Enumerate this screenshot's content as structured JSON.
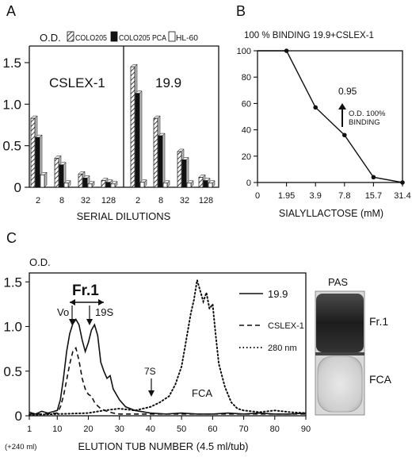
{
  "figure": {
    "panel_labels": [
      "A",
      "B",
      "C"
    ]
  },
  "chart_data": [
    {
      "id": "A",
      "type": "bar",
      "ylabel": "O.D.",
      "xlabel": "SERIAL DILUTIONS",
      "ylim": [
        0,
        1.7
      ],
      "yticks": [
        "0",
        "0.5",
        "1.0",
        "1.5"
      ],
      "ytick_values": [
        0,
        0.5,
        1.0,
        1.5
      ],
      "legend": [
        "COLO205",
        "COLO205 PCA",
        "HL-60"
      ],
      "legend_position": "top",
      "subpanels": [
        {
          "title": "CSLEX-1",
          "categories": [
            "2",
            "8",
            "32",
            "128"
          ],
          "series": [
            {
              "name": "COLO205",
              "values": [
                0.83,
                0.35,
                0.16,
                0.08
              ]
            },
            {
              "name": "COLO205 PCA",
              "values": [
                0.6,
                0.27,
                0.11,
                0.06
              ]
            },
            {
              "name": "HL-60",
              "values": [
                0.15,
                0.05,
                0.04,
                0.04
              ]
            }
          ]
        },
        {
          "title": "19.9",
          "categories": [
            "2",
            "8",
            "32",
            "128"
          ],
          "series": [
            {
              "name": "COLO205",
              "values": [
                1.45,
                0.83,
                0.43,
                0.12
              ]
            },
            {
              "name": "COLO205 PCA",
              "values": [
                1.13,
                0.62,
                0.33,
                0.08
              ]
            },
            {
              "name": "HL-60",
              "values": [
                0.06,
                0.05,
                0.05,
                0.05
              ]
            }
          ]
        }
      ]
    },
    {
      "id": "B",
      "type": "line",
      "title": "100 % BINDING 19.9+CSLEX-1",
      "xlabel": "SIALYLLACTOSE (mM)",
      "categories": [
        "0",
        "1.95",
        "3.9",
        "7.8",
        "15.7",
        "31.4"
      ],
      "ylim": [
        0,
        100
      ],
      "yticks": [
        "0",
        "20",
        "40",
        "60",
        "80",
        "100"
      ],
      "ytick_values": [
        0,
        20,
        40,
        60,
        80,
        100
      ],
      "series": [
        {
          "values": [
            100,
            100,
            57,
            36,
            4,
            0
          ]
        }
      ],
      "annotation": {
        "value": "0.95",
        "line1": "O.D. 100%",
        "line2": "BINDING"
      }
    },
    {
      "id": "C",
      "type": "line",
      "ylabel": "O.D.",
      "xlabel": "ELUTION TUB NUMBER (4.5 ml/tub)",
      "x_origin_note": "(+240 ml)",
      "xlim": [
        1,
        90
      ],
      "ylim": [
        0,
        1.6
      ],
      "xticks": [
        "1",
        "10",
        "20",
        "30",
        "40",
        "50",
        "60",
        "70",
        "80",
        "90"
      ],
      "xtick_values": [
        1,
        10,
        20,
        30,
        40,
        50,
        60,
        70,
        80,
        90
      ],
      "yticks": [
        "0",
        "0.5",
        "1.0",
        "1.5"
      ],
      "ytick_values": [
        0,
        0.5,
        1.0,
        1.5
      ],
      "series": [
        {
          "name": "19.9",
          "style": "solid",
          "x": [
            1,
            3,
            5,
            7,
            8,
            10,
            11,
            12,
            13,
            14,
            15,
            16,
            17,
            18,
            19,
            20,
            21,
            22,
            23,
            24,
            25,
            26,
            27,
            28,
            30,
            32,
            35,
            40,
            45,
            50,
            55,
            60,
            65,
            70,
            75,
            80,
            85,
            90
          ],
          "y": [
            0.04,
            0.02,
            0.05,
            0.03,
            0.04,
            0.06,
            0.18,
            0.42,
            0.72,
            0.92,
            1.03,
            1.08,
            1.02,
            0.85,
            0.72,
            0.82,
            0.96,
            1.02,
            0.9,
            0.6,
            0.5,
            0.42,
            0.45,
            0.3,
            0.18,
            0.1,
            0.06,
            0.03,
            0.02,
            0.03,
            0.02,
            0.02,
            0.03,
            0.02,
            0.03,
            0.02,
            0.02,
            0.03
          ]
        },
        {
          "name": "CSLEX-1",
          "style": "dashed",
          "x": [
            1,
            5,
            10,
            11,
            12,
            13,
            14,
            15,
            16,
            17,
            18,
            19,
            20,
            21,
            22,
            23,
            24,
            26,
            28,
            30,
            35,
            40,
            50,
            60,
            70,
            80,
            90
          ],
          "y": [
            0.02,
            0.02,
            0.03,
            0.1,
            0.22,
            0.4,
            0.58,
            0.72,
            0.76,
            0.62,
            0.42,
            0.3,
            0.24,
            0.22,
            0.15,
            0.11,
            0.08,
            0.05,
            0.03,
            0.02,
            0.02,
            0.02,
            0.02,
            0.02,
            0.02,
            0.02,
            0.02
          ]
        },
        {
          "name": "280 nm",
          "style": "dotted",
          "x": [
            1,
            10,
            20,
            25,
            30,
            35,
            40,
            43,
            46,
            48,
            50,
            51,
            52,
            53,
            54,
            55,
            56,
            57,
            58,
            59,
            60,
            61,
            62,
            64,
            66,
            68,
            70,
            75,
            80,
            85,
            90
          ],
          "y": [
            0.01,
            0.02,
            0.03,
            0.06,
            0.08,
            0.06,
            0.1,
            0.15,
            0.22,
            0.35,
            0.55,
            0.75,
            0.95,
            1.15,
            1.3,
            1.52,
            1.4,
            1.28,
            1.38,
            1.2,
            1.25,
            0.9,
            0.58,
            0.32,
            0.15,
            0.08,
            0.06,
            0.04,
            0.06,
            0.04,
            0.03
          ]
        }
      ],
      "annotations": [
        {
          "text": "Fr.1"
        },
        {
          "text": "Vo"
        },
        {
          "text": "19S"
        },
        {
          "text": "7S"
        },
        {
          "text": "FCA"
        }
      ],
      "gel": {
        "title": "PAS",
        "labels": [
          "Fr.1",
          "FCA"
        ]
      }
    }
  ]
}
